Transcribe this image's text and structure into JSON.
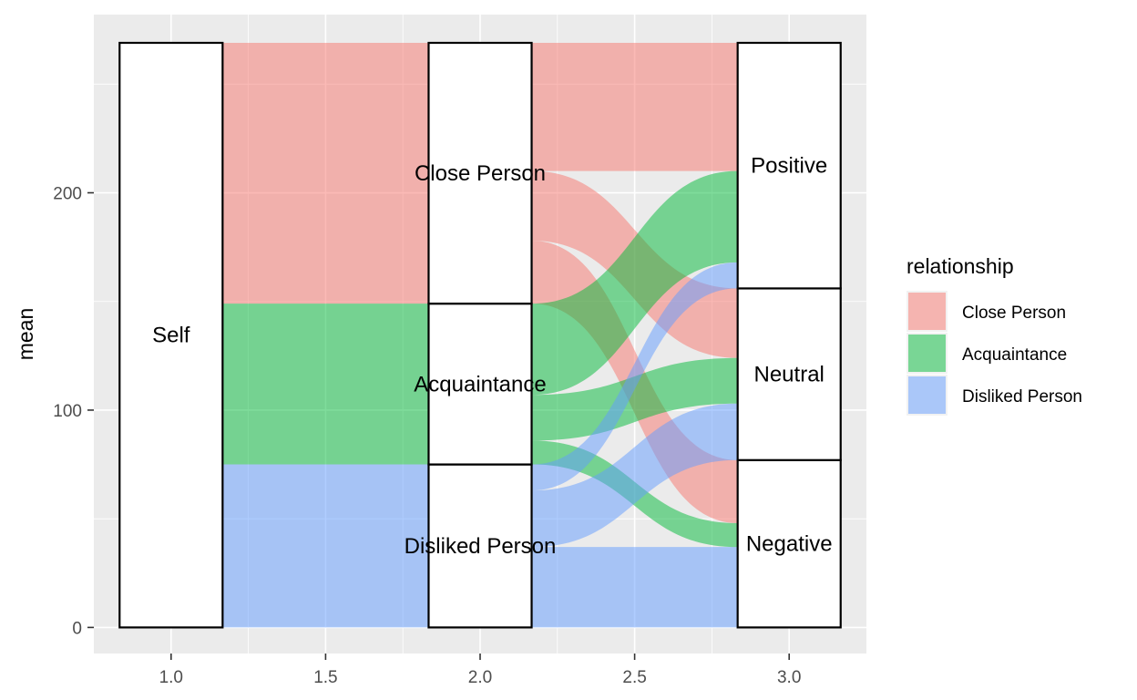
{
  "chart_data": {
    "type": "alluvial",
    "title": "",
    "xlabel": "",
    "ylabel": "mean",
    "xlim": [
      0.75,
      3.25
    ],
    "ylim": [
      -12,
      282
    ],
    "x_ticks": [
      "1.0",
      "1.5",
      "2.0",
      "2.5",
      "3.0"
    ],
    "x_tick_values": [
      1.0,
      1.5,
      2.0,
      2.5,
      3.0
    ],
    "y_ticks": [
      "0",
      "100",
      "200"
    ],
    "y_tick_values": [
      0,
      100,
      200
    ],
    "grid": true,
    "legend": {
      "title": "relationship",
      "position": "right",
      "items": [
        {
          "label": "Close Person",
          "color": "#F8766D"
        },
        {
          "label": "Acquaintance",
          "color": "#00BA38"
        },
        {
          "label": "Disliked Person",
          "color": "#619CFF"
        }
      ]
    },
    "axes": [
      {
        "x": 1.0,
        "strata": [
          {
            "label": "Self",
            "ymin": 0,
            "ymax": 269
          }
        ]
      },
      {
        "x": 2.0,
        "strata": [
          {
            "label": "Disliked Person",
            "ymin": 0,
            "ymax": 75
          },
          {
            "label": "Acquaintance",
            "ymin": 75,
            "ymax": 149
          },
          {
            "label": "Close Person",
            "ymin": 149,
            "ymax": 269
          }
        ]
      },
      {
        "x": 3.0,
        "strata": [
          {
            "label": "Negative",
            "ymin": 0,
            "ymax": 77
          },
          {
            "label": "Neutral",
            "ymin": 77,
            "ymax": 156
          },
          {
            "label": "Positive",
            "ymin": 156,
            "ymax": 269
          }
        ]
      }
    ],
    "flows": [
      {
        "relationship": "Close Person",
        "from_x": 1.0,
        "to_x": 2.0,
        "y0": [
          149,
          269
        ],
        "y1": [
          149,
          269
        ]
      },
      {
        "relationship": "Acquaintance",
        "from_x": 1.0,
        "to_x": 2.0,
        "y0": [
          75,
          149
        ],
        "y1": [
          75,
          149
        ]
      },
      {
        "relationship": "Disliked Person",
        "from_x": 1.0,
        "to_x": 2.0,
        "y0": [
          0,
          75
        ],
        "y1": [
          0,
          75
        ]
      },
      {
        "relationship": "Disliked Person",
        "from_x": 2.0,
        "to_x": 3.0,
        "y0": [
          0,
          37
        ],
        "y1": [
          0,
          37
        ]
      },
      {
        "relationship": "Close Person",
        "from_x": 2.0,
        "to_x": 3.0,
        "y0": [
          149,
          178
        ],
        "y1": [
          48,
          77
        ]
      },
      {
        "relationship": "Acquaintance",
        "from_x": 2.0,
        "to_x": 3.0,
        "y0": [
          75,
          86
        ],
        "y1": [
          37,
          48
        ]
      },
      {
        "relationship": "Disliked Person",
        "from_x": 2.0,
        "to_x": 3.0,
        "y0": [
          37,
          63
        ],
        "y1": [
          77,
          103
        ]
      },
      {
        "relationship": "Close Person",
        "from_x": 2.0,
        "to_x": 3.0,
        "y0": [
          178,
          210
        ],
        "y1": [
          124,
          156
        ]
      },
      {
        "relationship": "Acquaintance",
        "from_x": 2.0,
        "to_x": 3.0,
        "y0": [
          86,
          107
        ],
        "y1": [
          103,
          124
        ]
      },
      {
        "relationship": "Disliked Person",
        "from_x": 2.0,
        "to_x": 3.0,
        "y0": [
          63,
          75
        ],
        "y1": [
          156,
          168
        ]
      },
      {
        "relationship": "Close Person",
        "from_x": 2.0,
        "to_x": 3.0,
        "y0": [
          210,
          269
        ],
        "y1": [
          210,
          269
        ]
      },
      {
        "relationship": "Acquaintance",
        "from_x": 2.0,
        "to_x": 3.0,
        "y0": [
          107,
          149
        ],
        "y1": [
          168,
          210
        ]
      }
    ]
  }
}
